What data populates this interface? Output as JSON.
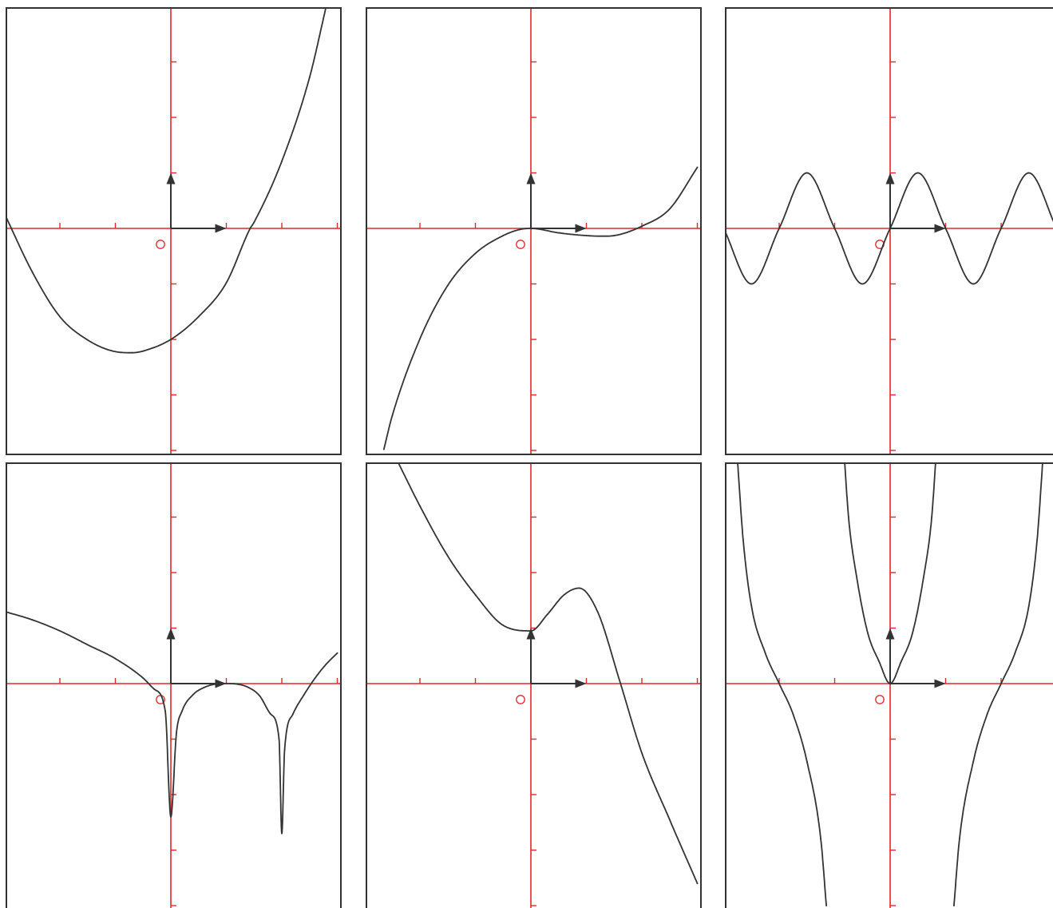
{
  "colors": {
    "axis": "#e3262b",
    "curve": "#333333",
    "frame": "#333333",
    "background": "#ffffff"
  },
  "icons": {
    "origin": "origin-circle-icon",
    "unit_x": "unit-vector-x-arrow-icon",
    "unit_y": "unit-vector-y-arrow-icon"
  },
  "chart_data": [
    {
      "type": "line",
      "grid": false,
      "legend": "none",
      "xlim": [
        -3,
        3
      ],
      "ylim": [
        -4,
        4
      ],
      "x_ticks": [
        -3,
        -2,
        -1,
        1,
        2,
        3
      ],
      "y_ticks": [
        -4,
        -3,
        -2,
        -1,
        1,
        2,
        3,
        4
      ],
      "series": [
        {
          "x": [
            -3.0,
            -2.5,
            -2.0,
            -1.5,
            -1.0,
            -0.7,
            -0.5,
            0.0,
            0.5,
            1.0,
            1.43,
            1.5,
            2.0,
            2.5,
            2.8
          ],
          "y": [
            0.27,
            -0.78,
            -1.59,
            -2.01,
            -2.22,
            -2.24,
            -2.21,
            -2.0,
            -1.59,
            -0.98,
            0.0,
            0.11,
            1.21,
            2.72,
            4.0
          ]
        }
      ]
    },
    {
      "type": "line",
      "grid": false,
      "legend": "none",
      "xlim": [
        -3,
        3
      ],
      "ylim": [
        -4,
        4
      ],
      "x_ticks": [
        -3,
        -2,
        -1,
        1,
        2,
        3
      ],
      "y_ticks": [
        -4,
        -3,
        -2,
        -1,
        1,
        2,
        3,
        4
      ],
      "series": [
        {
          "x": [
            -2.65,
            -2.5,
            -2.0,
            -1.5,
            -1.0,
            -0.5,
            -0.2,
            0.0,
            0.5,
            1.0,
            1.3,
            1.5,
            2.0,
            2.5,
            3.0
          ],
          "y": [
            -3.98,
            -3.38,
            -1.99,
            -1.03,
            -0.45,
            -0.13,
            -0.02,
            0.0,
            -0.08,
            -0.13,
            -0.14,
            -0.13,
            0.04,
            0.35,
            1.1
          ]
        }
      ]
    },
    {
      "type": "line",
      "grid": false,
      "legend": "none",
      "xlim": [
        -3,
        3
      ],
      "ylim": [
        -4,
        4
      ],
      "x_ticks": [
        -3,
        -2,
        -1,
        1,
        2,
        3
      ],
      "y_ticks": [
        -4,
        -3,
        -2,
        -1,
        1,
        2,
        3,
        4
      ],
      "series": [
        {
          "x": [
            -3.0,
            -2.5,
            -2.0,
            -1.5,
            -1.0,
            -0.5,
            0.0,
            0.5,
            1.0,
            1.5,
            2.0,
            2.5,
            3.0
          ],
          "y": [
            0.0,
            -1.0,
            0.0,
            1.0,
            0.0,
            -1.0,
            0.0,
            1.0,
            0.0,
            -1.0,
            0.0,
            1.0,
            0.0
          ]
        }
      ]
    },
    {
      "type": "line",
      "grid": false,
      "legend": "none",
      "xlim": [
        -3,
        3
      ],
      "ylim": [
        -4,
        4
      ],
      "x_ticks": [
        -3,
        -2,
        -1,
        1,
        2,
        3
      ],
      "y_ticks": [
        -4,
        -3,
        -2,
        -1,
        1,
        2,
        3,
        4
      ],
      "series": [
        {
          "x": [
            -3.0,
            -2.5,
            -2.0,
            -1.5,
            -1.0,
            -0.5,
            -0.3,
            -0.1,
            0.0,
            0.1,
            0.2,
            0.4,
            0.6,
            0.8,
            1.0,
            1.2,
            1.4,
            1.6,
            1.8,
            1.95,
            2.0,
            2.05,
            2.2,
            2.4,
            2.6,
            2.8,
            3.0
          ],
          "y": [
            1.3,
            1.15,
            0.95,
            0.7,
            0.45,
            0.1,
            -0.1,
            -0.5,
            -2.4,
            -0.9,
            -0.5,
            -0.2,
            -0.07,
            -0.01,
            0.0,
            -0.01,
            -0.07,
            -0.22,
            -0.55,
            -1.0,
            -2.7,
            -1.2,
            -0.55,
            -0.2,
            0.1,
            0.35,
            0.55
          ]
        }
      ]
    },
    {
      "type": "line",
      "grid": false,
      "legend": "none",
      "xlim": [
        -3,
        3
      ],
      "ylim": [
        -4,
        4
      ],
      "x_ticks": [
        -3,
        -2,
        -1,
        1,
        2,
        3
      ],
      "y_ticks": [
        -4,
        -3,
        -2,
        -1,
        1,
        2,
        3,
        4
      ],
      "series": [
        {
          "x": [
            -2.4,
            -2.0,
            -1.5,
            -1.0,
            -0.5,
            0.0,
            0.3,
            0.6,
            0.87,
            1.2,
            1.6,
            2.0,
            2.5,
            3.0
          ],
          "y": [
            4.0,
            3.2,
            2.3,
            1.6,
            1.05,
            0.95,
            1.25,
            1.6,
            1.72,
            1.3,
            0.05,
            -1.25,
            -2.45,
            -3.6
          ]
        }
      ]
    },
    {
      "type": "line",
      "grid": false,
      "legend": "none",
      "xlim": [
        -3,
        3
      ],
      "ylim": [
        -4,
        4
      ],
      "x_ticks": [
        -3,
        -2,
        -1,
        1,
        2,
        3
      ],
      "y_ticks": [
        -4,
        -3,
        -2,
        -1,
        1,
        2,
        3,
        4
      ],
      "series": [
        {
          "x": [
            -2.75,
            -2.65,
            -2.5,
            -2.25,
            -2.0,
            -1.75,
            -1.5,
            -1.25,
            -1.15
          ],
          "y": [
            4.0,
            2.6,
            1.4,
            0.55,
            0.0,
            -0.55,
            -1.4,
            -2.8,
            -4.0
          ]
        },
        {
          "x": [
            -0.82,
            -0.75,
            -0.6,
            -0.4,
            -0.2,
            0.0,
            0.2,
            0.4,
            0.6,
            0.75,
            0.82
          ],
          "y": [
            4.0,
            3.0,
            1.9,
            0.9,
            0.4,
            0.0,
            0.4,
            0.9,
            1.9,
            3.0,
            4.0
          ]
        },
        {
          "x": [
            1.15,
            1.25,
            1.5,
            1.75,
            2.0,
            2.25,
            2.5,
            2.65,
            2.75
          ],
          "y": [
            -4.0,
            -2.8,
            -1.4,
            -0.55,
            0.0,
            0.55,
            1.4,
            2.6,
            4.0
          ]
        }
      ]
    }
  ]
}
